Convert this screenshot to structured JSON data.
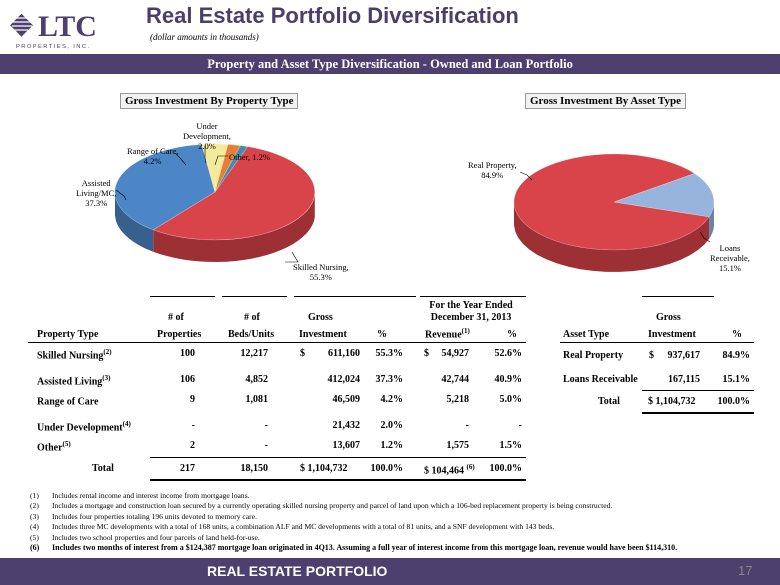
{
  "header": {
    "logo_main": "LTC",
    "logo_sub": "PROPERTIES, INC.",
    "title": "Real Estate Portfolio Diversification",
    "subtitle": "(dollar amounts in thousands)",
    "banner": "Property and Asset Type Diversification - Owned and Loan Portfolio"
  },
  "colors": {
    "brand": "#4d3f6e",
    "title": "#4a3f6b"
  },
  "charts": {
    "property": {
      "title": "Gross Investment By Property Type",
      "labels": {
        "skilled": [
          "Skilled Nursing,",
          "55.3%"
        ],
        "assisted": [
          "Assisted",
          "Living/MC,",
          "37.3%"
        ],
        "range": [
          "Range of Care,",
          "4.2%"
        ],
        "under": [
          "Under",
          "Development,",
          "2.0%"
        ],
        "other": [
          "Other, 1.2%"
        ]
      }
    },
    "asset": {
      "title": "Gross Investment By Asset Type",
      "labels": {
        "real": [
          "Real Property,",
          "84.9%"
        ],
        "loans": [
          "Loans",
          "Receivable,",
          "15.1%"
        ]
      }
    }
  },
  "chart_data": [
    {
      "type": "pie",
      "title": "Gross Investment By Property Type",
      "categories": [
        "Skilled Nursing",
        "Assisted Living/MC",
        "Range of Care",
        "Under Development",
        "Other"
      ],
      "values": [
        55.3,
        37.3,
        4.2,
        2.0,
        1.2
      ],
      "colors": [
        "#d9434a",
        "#4d86c6",
        "#f3ea9a",
        "#e87d36",
        "#3d8fae"
      ]
    },
    {
      "type": "pie",
      "title": "Gross Investment By Asset Type",
      "categories": [
        "Real Property",
        "Loans Receivable"
      ],
      "values": [
        84.9,
        15.1
      ],
      "colors": [
        "#d9434a",
        "#97b5dc"
      ]
    }
  ],
  "property_table": {
    "headers": {
      "num_of": "# of",
      "num_of2": "# of",
      "gross": "Gross",
      "year_ended_1": "For the Year Ended",
      "year_ended_2": "December 31, 2013",
      "property_type": "Property Type",
      "properties": "Properties",
      "beds_units": "Beds/Units",
      "investment": "Investment",
      "pct": "%",
      "revenue": "Revenue",
      "revenue_sup": "(1)",
      "pct2": "%"
    },
    "rows": [
      {
        "type": "Skilled Nursing",
        "sup": "(2)",
        "properties": "100",
        "beds": "12,217",
        "dollar": "$",
        "investment": "611,160",
        "pct": "55.3%",
        "rev_dollar": "$",
        "revenue": "54,927",
        "rev_pct": "52.6%"
      },
      {
        "type": "Assisted Living",
        "sup": "(3)",
        "properties": "106",
        "beds": "4,852",
        "dollar": "",
        "investment": "412,024",
        "pct": "37.3%",
        "rev_dollar": "",
        "revenue": "42,744",
        "rev_pct": "40.9%"
      },
      {
        "type": "Range of Care",
        "sup": "",
        "properties": "9",
        "beds": "1,081",
        "dollar": "",
        "investment": "46,509",
        "pct": "4.2%",
        "rev_dollar": "",
        "revenue": "5,218",
        "rev_pct": "5.0%"
      },
      {
        "type": "Under Development",
        "sup": "(4)",
        "properties": "-",
        "beds": "-",
        "dollar": "",
        "investment": "21,432",
        "pct": "2.0%",
        "rev_dollar": "",
        "revenue": "-",
        "rev_pct": "-"
      },
      {
        "type": "Other",
        "sup": "(5)",
        "properties": "2",
        "beds": "-",
        "dollar": "",
        "investment": "13,607",
        "pct": "1.2%",
        "rev_dollar": "",
        "revenue": "1,575",
        "rev_pct": "1.5%"
      }
    ],
    "total": {
      "label": "Total",
      "properties": "217",
      "beds": "18,150",
      "investment": "$  1,104,732",
      "pct": "100.0%",
      "revenue": "$  104,464",
      "rev_sup": "(6)",
      "rev_pct": "100.0%"
    }
  },
  "asset_table": {
    "headers": {
      "gross": "Gross",
      "asset_type": "Asset Type",
      "investment": "Investment",
      "pct": "%"
    },
    "rows": [
      {
        "type": "Real Property",
        "dollar": "$",
        "investment": "937,617",
        "pct": "84.9%"
      },
      {
        "type": "Loans Receivable",
        "dollar": "",
        "investment": "167,115",
        "pct": "15.1%"
      }
    ],
    "total": {
      "label": "Total",
      "investment": "$  1,104,732",
      "pct": "100.0%"
    }
  },
  "footnotes": [
    {
      "num": "(1)",
      "text": "Includes rental income and interest income from mortgage loans."
    },
    {
      "num": "(2)",
      "text": "Includes a mortgage and construction loan secured by a currently operating skilled nursing property and parcel of land upon which a 106-bed replacement property is being constructed."
    },
    {
      "num": "(3)",
      "text": "Includes four  properties totaling 196 units devoted to memory care."
    },
    {
      "num": "(4)",
      "text": "Includes three MC developments with a total of 168 units, a combination ALF and MC developments with a total of 81 units, and a SNF development with 143 beds."
    },
    {
      "num": "(5)",
      "text": "Includes two school properties and four parcels of land held-for-use."
    },
    {
      "num": "(6)",
      "text": "Includes two months of interest from a $124,387 mortgage loan originated in 4Q13.  Assuming a full year of interest income from this mortgage loan, revenue would have been $114,310."
    }
  ],
  "footer": {
    "title": "REAL ESTATE PORTFOLIO",
    "page": "17"
  }
}
